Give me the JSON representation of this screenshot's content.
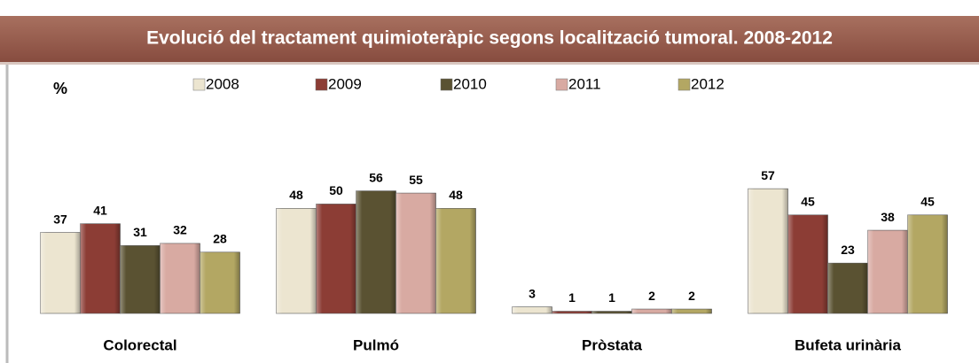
{
  "chart_data": {
    "type": "bar",
    "title": "Evolució del tractament quimioteràpic segons localització tumoral. 2008-2012",
    "y_label": "%",
    "categories": [
      "Colorectal",
      "Pulmó",
      "Pròstata",
      "Bufeta urinària"
    ],
    "series": [
      {
        "name": "2008",
        "color": "#ece5d0",
        "values": [
          37,
          48,
          3,
          57
        ]
      },
      {
        "name": "2009",
        "color": "#8c3d35",
        "values": [
          41,
          50,
          1,
          45
        ]
      },
      {
        "name": "2010",
        "color": "#5a5232",
        "values": [
          31,
          56,
          1,
          23
        ]
      },
      {
        "name": "2011",
        "color": "#d8aaa2",
        "values": [
          32,
          55,
          2,
          38
        ]
      },
      {
        "name": "2012",
        "color": "#b3a763",
        "values": [
          28,
          48,
          2,
          45
        ]
      }
    ],
    "ylim": [
      0,
      70
    ],
    "legend": "top"
  }
}
